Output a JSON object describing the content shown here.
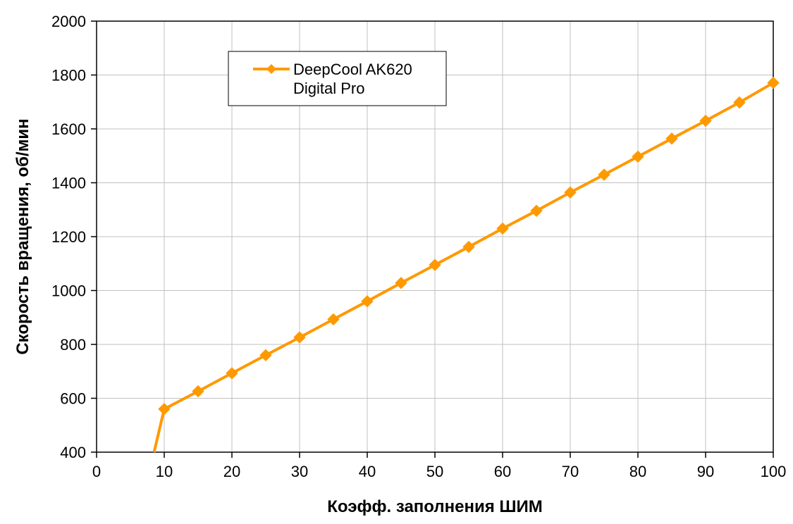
{
  "chart_data": {
    "type": "line",
    "xlabel": "Коэфф. заполнения ШИМ",
    "ylabel": "Скорость вращения, об/мин",
    "xlim": [
      0,
      100
    ],
    "ylim": [
      400,
      2000
    ],
    "x_ticks": [
      0,
      10,
      20,
      30,
      40,
      50,
      60,
      70,
      80,
      90,
      100
    ],
    "y_ticks": [
      400,
      600,
      800,
      1000,
      1200,
      1400,
      1600,
      1800,
      2000
    ],
    "grid": true,
    "legend_position": "top-left inside plot",
    "series": [
      {
        "name": "DeepCool AK620 Digital Pro",
        "legend_lines": [
          "DeepCool AK620",
          "Digital Pro"
        ],
        "color": "#FF9900",
        "marker": "diamond",
        "line_start": {
          "x": 8.5,
          "y": 400
        },
        "points": [
          {
            "x": 10,
            "y": 560
          },
          {
            "x": 15,
            "y": 626
          },
          {
            "x": 20,
            "y": 693
          },
          {
            "x": 25,
            "y": 760
          },
          {
            "x": 30,
            "y": 826
          },
          {
            "x": 35,
            "y": 893
          },
          {
            "x": 40,
            "y": 960
          },
          {
            "x": 45,
            "y": 1028
          },
          {
            "x": 50,
            "y": 1095
          },
          {
            "x": 55,
            "y": 1162
          },
          {
            "x": 60,
            "y": 1230
          },
          {
            "x": 65,
            "y": 1296
          },
          {
            "x": 70,
            "y": 1364
          },
          {
            "x": 75,
            "y": 1430
          },
          {
            "x": 80,
            "y": 1497
          },
          {
            "x": 85,
            "y": 1564
          },
          {
            "x": 90,
            "y": 1630
          },
          {
            "x": 95,
            "y": 1698
          },
          {
            "x": 100,
            "y": 1771
          }
        ]
      }
    ]
  }
}
